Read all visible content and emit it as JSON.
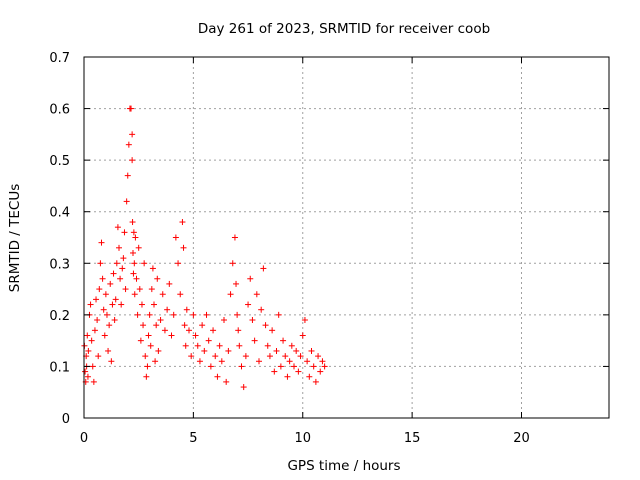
{
  "chart_data": {
    "type": "scatter",
    "title": "Day 261 of 2023, SRMTID for receiver coob",
    "xlabel": "GPS time / hours",
    "ylabel": "SRMTID / TECUs",
    "xlim": [
      0,
      24
    ],
    "ylim": [
      0,
      0.7
    ],
    "xticks": [
      0,
      5,
      10,
      15,
      20
    ],
    "yticks": [
      0,
      0.1,
      0.2,
      0.3,
      0.4,
      0.5,
      0.6,
      0.7
    ],
    "xtick_labels": [
      "0",
      "5",
      "10",
      "15",
      "20"
    ],
    "ytick_labels": [
      "0",
      "0.1",
      "0.2",
      "0.3",
      "0.4",
      "0.5",
      "0.6",
      "0.7"
    ],
    "grid": true,
    "marker": "+",
    "marker_color": "#ff0000",
    "series": [
      {
        "name": "SRMTID",
        "x": [
          0.02,
          0.05,
          0.08,
          0.1,
          0.12,
          0.15,
          0.18,
          0.2,
          0.25,
          0.3,
          0.35,
          0.4,
          0.45,
          0.5,
          0.55,
          0.6,
          0.65,
          0.7,
          0.75,
          0.8,
          0.85,
          0.9,
          0.95,
          1.0,
          1.05,
          1.1,
          1.15,
          1.2,
          1.25,
          1.3,
          1.35,
          1.4,
          1.45,
          1.5,
          1.55,
          1.6,
          1.65,
          1.7,
          1.75,
          1.8,
          1.85,
          1.9,
          1.95,
          2.0,
          2.05,
          2.1,
          2.15,
          2.2,
          2.2,
          2.22,
          2.24,
          2.26,
          2.28,
          2.3,
          2.32,
          2.35,
          2.4,
          2.45,
          2.5,
          2.55,
          2.6,
          2.65,
          2.7,
          2.75,
          2.8,
          2.85,
          2.9,
          2.95,
          3.0,
          3.05,
          3.1,
          3.15,
          3.2,
          3.25,
          3.3,
          3.35,
          3.4,
          3.5,
          3.6,
          3.7,
          3.8,
          3.9,
          4.0,
          4.1,
          4.2,
          4.3,
          4.4,
          4.5,
          4.55,
          4.6,
          4.65,
          4.7,
          4.8,
          4.9,
          5.0,
          5.1,
          5.2,
          5.3,
          5.4,
          5.5,
          5.6,
          5.7,
          5.8,
          5.9,
          6.0,
          6.1,
          6.2,
          6.3,
          6.4,
          6.5,
          6.6,
          6.7,
          6.8,
          6.9,
          6.95,
          7.0,
          7.05,
          7.1,
          7.2,
          7.3,
          7.4,
          7.5,
          7.6,
          7.7,
          7.8,
          7.9,
          8.0,
          8.1,
          8.2,
          8.3,
          8.4,
          8.5,
          8.6,
          8.7,
          8.8,
          8.9,
          9.0,
          9.1,
          9.2,
          9.3,
          9.4,
          9.5,
          9.6,
          9.7,
          9.8,
          9.9,
          10.0,
          10.1,
          10.2,
          10.3,
          10.4,
          10.5,
          10.6,
          10.7,
          10.8,
          10.9,
          11.0
        ],
        "y": [
          0.14,
          0.09,
          0.07,
          0.12,
          0.1,
          0.16,
          0.08,
          0.13,
          0.2,
          0.22,
          0.15,
          0.1,
          0.07,
          0.17,
          0.23,
          0.19,
          0.12,
          0.25,
          0.3,
          0.34,
          0.27,
          0.21,
          0.16,
          0.24,
          0.2,
          0.13,
          0.18,
          0.26,
          0.11,
          0.22,
          0.28,
          0.19,
          0.23,
          0.3,
          0.37,
          0.33,
          0.27,
          0.22,
          0.29,
          0.31,
          0.36,
          0.25,
          0.42,
          0.47,
          0.53,
          0.6,
          0.6,
          0.55,
          0.5,
          0.38,
          0.32,
          0.28,
          0.36,
          0.3,
          0.24,
          0.35,
          0.27,
          0.2,
          0.33,
          0.25,
          0.15,
          0.22,
          0.18,
          0.3,
          0.12,
          0.08,
          0.1,
          0.16,
          0.2,
          0.14,
          0.25,
          0.29,
          0.22,
          0.11,
          0.18,
          0.27,
          0.13,
          0.19,
          0.24,
          0.17,
          0.21,
          0.26,
          0.16,
          0.2,
          0.35,
          0.3,
          0.24,
          0.38,
          0.33,
          0.18,
          0.14,
          0.21,
          0.17,
          0.12,
          0.2,
          0.16,
          0.14,
          0.11,
          0.18,
          0.13,
          0.2,
          0.15,
          0.1,
          0.17,
          0.12,
          0.08,
          0.14,
          0.11,
          0.19,
          0.07,
          0.13,
          0.24,
          0.3,
          0.35,
          0.26,
          0.2,
          0.17,
          0.14,
          0.1,
          0.06,
          0.12,
          0.22,
          0.27,
          0.19,
          0.15,
          0.24,
          0.11,
          0.21,
          0.29,
          0.18,
          0.14,
          0.12,
          0.17,
          0.09,
          0.13,
          0.2,
          0.1,
          0.15,
          0.12,
          0.08,
          0.11,
          0.14,
          0.1,
          0.13,
          0.09,
          0.12,
          0.16,
          0.19,
          0.11,
          0.08,
          0.13,
          0.1,
          0.07,
          0.12,
          0.09,
          0.11,
          0.1
        ]
      }
    ]
  }
}
